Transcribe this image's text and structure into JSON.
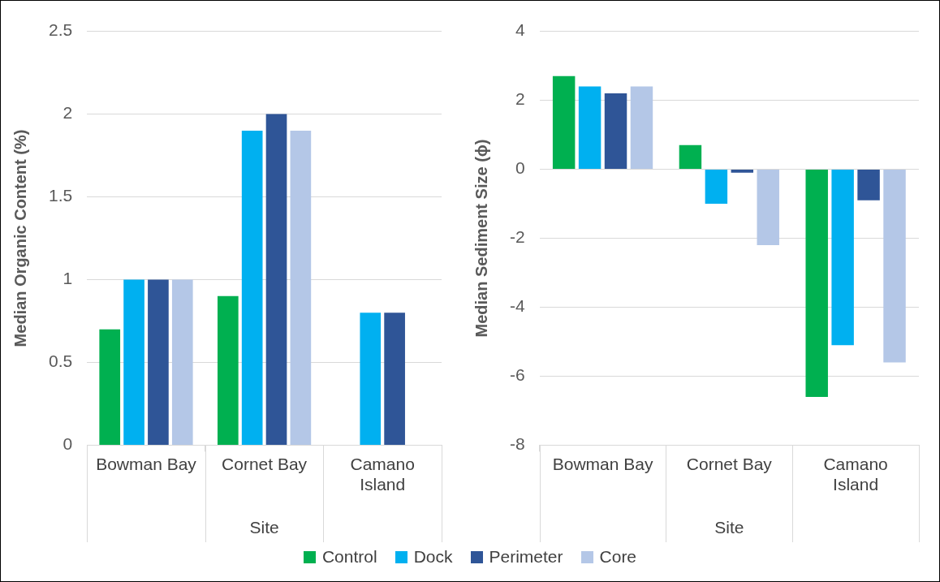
{
  "chart_data": [
    {
      "type": "bar",
      "categories": [
        "Bowman Bay",
        "Cornet Bay",
        "Camano Island"
      ],
      "xlabel": "Site",
      "ylabel": "Median Organic Content (%)",
      "ylim": [
        0,
        2.5
      ],
      "yticks": [
        0,
        0.5,
        1,
        1.5,
        2,
        2.5
      ],
      "grid": "y",
      "legend": "bottom",
      "series": [
        {
          "name": "Control",
          "color": "#00b050",
          "values": [
            0.7,
            0.9,
            null
          ]
        },
        {
          "name": "Dock",
          "color": "#00b0f0",
          "values": [
            1,
            1.9,
            0.8
          ]
        },
        {
          "name": "Perimeter",
          "color": "#2f5597",
          "values": [
            1,
            2,
            0.8
          ]
        },
        {
          "name": "Core",
          "color": "#b4c7e7",
          "values": [
            1,
            1.9,
            null
          ]
        }
      ]
    },
    {
      "type": "bar",
      "categories": [
        "Bowman Bay",
        "Cornet Bay",
        "Camano Island"
      ],
      "xlabel": "Site",
      "ylabel": "Median Sediment Size (ϕ)",
      "ylim": [
        -8,
        4
      ],
      "yticks": [
        -8,
        -6,
        -4,
        -2,
        0,
        2,
        4
      ],
      "grid": "y",
      "series": [
        {
          "color": "#00b050",
          "values": [
            2.7,
            0.7,
            -6.6
          ]
        },
        {
          "color": "#00b0f0",
          "values": [
            2.4,
            -1.0,
            -5.1
          ]
        },
        {
          "color": "#2f5597",
          "values": [
            2.2,
            -0.1,
            -0.9
          ]
        },
        {
          "color": "#b4c7e7",
          "values": [
            2.4,
            -2.2,
            -5.6
          ]
        }
      ]
    }
  ]
}
